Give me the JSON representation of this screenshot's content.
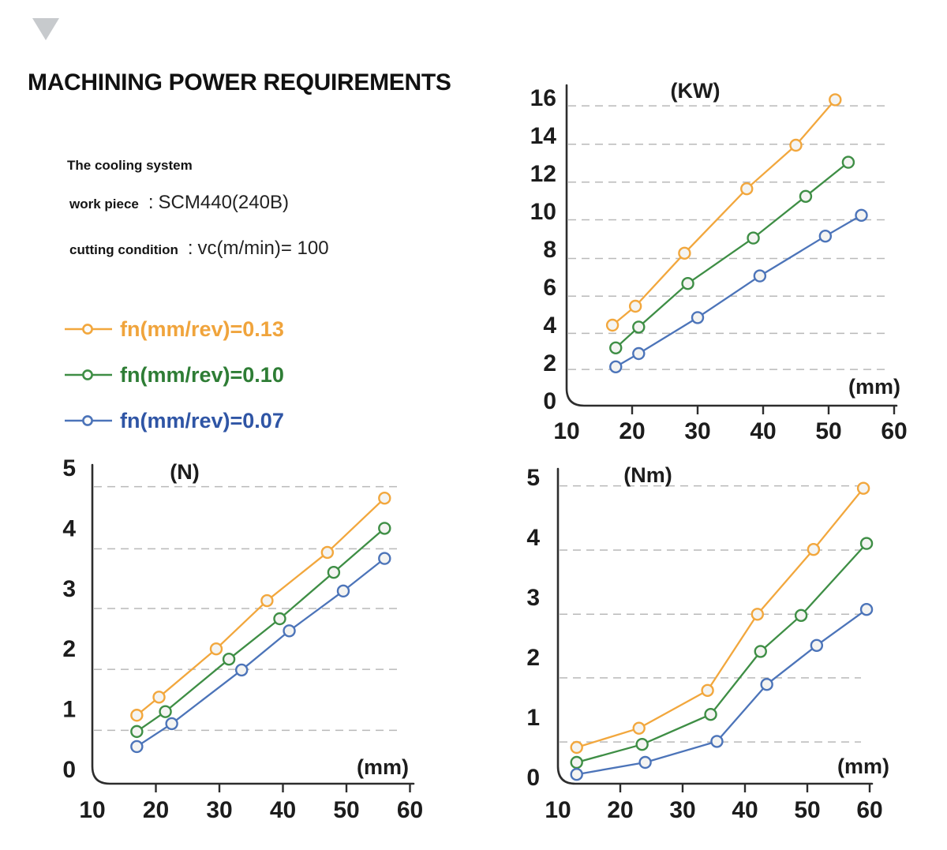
{
  "brand": {
    "triangle_icon": "down-triangle"
  },
  "title": "MACHINING POWER REQUIREMENTS",
  "info": {
    "cooling": "The cooling system",
    "rows": [
      {
        "label": "work piece",
        "colon": ":",
        "value": "SCM440(240B)"
      },
      {
        "label": "cutting condition",
        "colon": ":",
        "value": "vc(m/min)= 100"
      }
    ]
  },
  "legend": [
    {
      "label": "fn(mm/rev)=0.13",
      "color": "#F0A43C"
    },
    {
      "label": "fn(mm/rev)=0.10",
      "color": "#2E7D35"
    },
    {
      "label": "fn(mm/rev)=0.07",
      "color": "#2F55A5"
    }
  ],
  "colors": {
    "orange": "#F2A73D",
    "green": "#3E8E45",
    "blue": "#4C74B9",
    "axis": "#2d2d2d",
    "gridline": "#b9b9b9",
    "triangle": "#c7cacd"
  },
  "chart_data": [
    {
      "type": "line",
      "title": "(KW)",
      "xlabel": "(mm)",
      "ylabel": "",
      "xlim": [
        10,
        60
      ],
      "ylim": [
        0,
        16
      ],
      "xticks": [
        10,
        20,
        30,
        40,
        50,
        60
      ],
      "yticks": [
        0,
        2,
        4,
        6,
        8,
        10,
        12,
        14,
        16
      ],
      "gridlines": [
        1.66,
        3.57,
        5.53,
        7.52,
        9.56,
        11.55,
        13.55,
        15.58
      ],
      "grid": "dashed",
      "legend_position": "none",
      "series": [
        {
          "name": "fn(mm/rev)=0.13",
          "color": "#F2A73D",
          "points": [
            [
              17,
              4.0
            ],
            [
              20.5,
              5.0
            ],
            [
              28,
              7.8
            ],
            [
              37.5,
              11.2
            ],
            [
              45,
              13.5
            ],
            [
              51,
              15.9
            ]
          ]
        },
        {
          "name": "fn(mm/rev)=0.10",
          "color": "#3E8E45",
          "points": [
            [
              17.5,
              2.8
            ],
            [
              21,
              3.9
            ],
            [
              28.5,
              6.2
            ],
            [
              38.5,
              8.6
            ],
            [
              46.5,
              10.8
            ],
            [
              53,
              12.6
            ]
          ]
        },
        {
          "name": "fn(mm/rev)=0.07",
          "color": "#4C74B9",
          "points": [
            [
              17.5,
              1.8
            ],
            [
              21,
              2.5
            ],
            [
              30,
              4.4
            ],
            [
              39.5,
              6.6
            ],
            [
              49.5,
              8.7
            ],
            [
              55,
              9.8
            ]
          ]
        }
      ]
    },
    {
      "type": "line",
      "title": "(N)",
      "xlabel": "(mm)",
      "ylabel": "",
      "xlim": [
        10,
        60
      ],
      "ylim": [
        0,
        5
      ],
      "xticks": [
        10,
        20,
        30,
        40,
        50,
        60
      ],
      "yticks": [
        0,
        1,
        2,
        3,
        4,
        5
      ],
      "gridlines": [
        0.65,
        1.66,
        2.67,
        3.66,
        4.69
      ],
      "grid": "dashed",
      "legend_position": "none",
      "series": [
        {
          "name": "fn(mm/rev)=0.13",
          "color": "#F2A73D",
          "points": [
            [
              17,
              0.9
            ],
            [
              20.5,
              1.2
            ],
            [
              29.5,
              2.0
            ],
            [
              37.5,
              2.8
            ],
            [
              47,
              3.6
            ],
            [
              56,
              4.5
            ]
          ]
        },
        {
          "name": "fn(mm/rev)=0.10",
          "color": "#3E8E45",
          "points": [
            [
              17,
              0.63
            ],
            [
              21.5,
              0.96
            ],
            [
              31.5,
              1.83
            ],
            [
              39.5,
              2.5
            ],
            [
              48,
              3.27
            ],
            [
              56,
              4.0
            ]
          ]
        },
        {
          "name": "fn(mm/rev)=0.07",
          "color": "#4C74B9",
          "points": [
            [
              17,
              0.38
            ],
            [
              22.5,
              0.76
            ],
            [
              33.5,
              1.65
            ],
            [
              41,
              2.3
            ],
            [
              49.5,
              2.96
            ],
            [
              56,
              3.5
            ]
          ]
        }
      ]
    },
    {
      "type": "line",
      "title": "(Nm)",
      "xlabel": "(mm)",
      "ylabel": "",
      "xlim": [
        10,
        60
      ],
      "ylim": [
        0,
        5
      ],
      "xticks": [
        10,
        20,
        30,
        40,
        50,
        60
      ],
      "yticks": [
        0,
        1,
        2,
        3,
        4,
        5
      ],
      "gridlines": [
        0.59,
        1.66,
        2.72,
        3.79,
        4.86
      ],
      "grid": "dashed",
      "legend_position": "none",
      "series": [
        {
          "name": "fn(mm/rev)=0.13",
          "color": "#F2A73D",
          "points": [
            [
              13,
              0.5
            ],
            [
              23,
              0.82
            ],
            [
              34,
              1.45
            ],
            [
              42,
              2.72
            ],
            [
              51,
              3.8
            ],
            [
              59,
              4.82
            ]
          ]
        },
        {
          "name": "fn(mm/rev)=0.10",
          "color": "#3E8E45",
          "points": [
            [
              13,
              0.25
            ],
            [
              23.5,
              0.55
            ],
            [
              34.5,
              1.05
            ],
            [
              42.5,
              2.1
            ],
            [
              49,
              2.7
            ],
            [
              59.5,
              3.9
            ]
          ]
        },
        {
          "name": "fn(mm/rev)=0.07",
          "color": "#4C74B9",
          "points": [
            [
              13,
              0.05
            ],
            [
              24,
              0.25
            ],
            [
              35.5,
              0.6
            ],
            [
              43.5,
              1.55
            ],
            [
              51.5,
              2.2
            ],
            [
              59.5,
              2.8
            ]
          ]
        }
      ]
    }
  ]
}
